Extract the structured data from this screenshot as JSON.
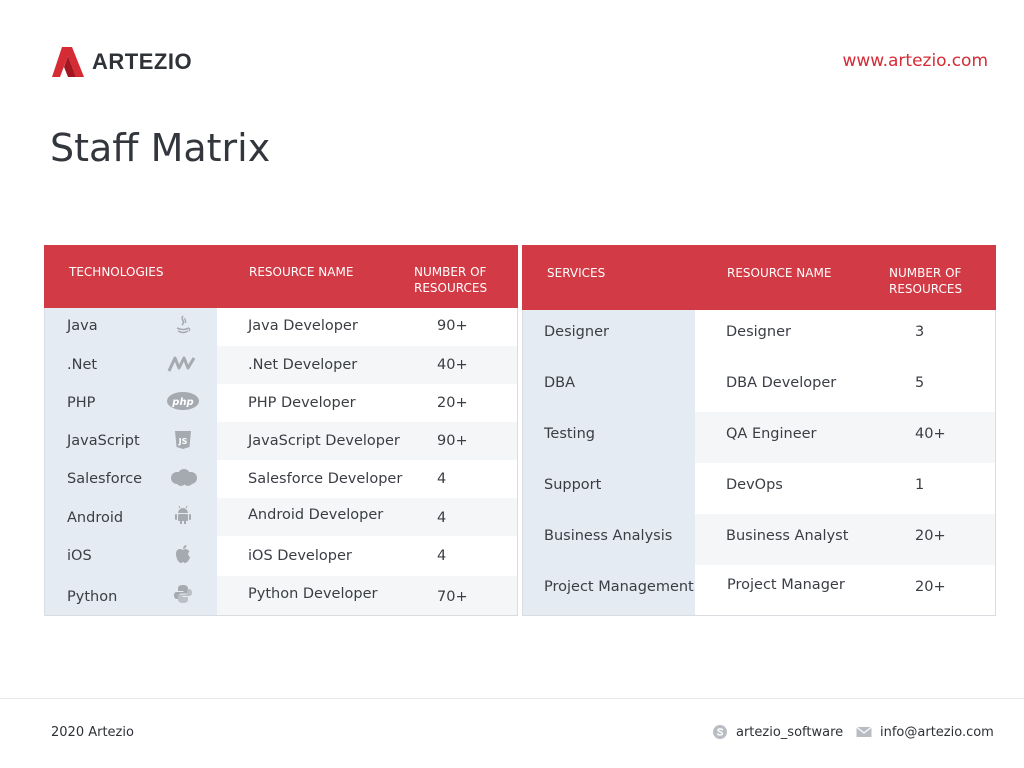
{
  "brand": {
    "name": "ARTEZIO",
    "url": "www.artezio.com",
    "accent": "#d23a45"
  },
  "page": {
    "title": "Staff Matrix"
  },
  "tech_table": {
    "headers": [
      "TECHNOLOGIES",
      "RESOURCE NAME",
      "NUMBER OF RESOURCES"
    ],
    "rows": [
      {
        "tech": "Java",
        "icon": "java-icon",
        "resource": "Java Developer",
        "count": "90+"
      },
      {
        "tech": ".Net",
        "icon": "dotnet-icon",
        "resource": ".Net Developer",
        "count": "40+"
      },
      {
        "tech": "PHP",
        "icon": "php-icon",
        "resource": "PHP Developer",
        "count": "20+"
      },
      {
        "tech": "JavaScript",
        "icon": "javascript-icon",
        "resource": "JavaScript Developer",
        "count": "90+"
      },
      {
        "tech": "Salesforce",
        "icon": "salesforce-icon",
        "resource": "Salesforce Developer",
        "count": "4"
      },
      {
        "tech": "Android",
        "icon": "android-icon",
        "resource": "Android Developer",
        "count": "4"
      },
      {
        "tech": "iOS",
        "icon": "apple-icon",
        "resource": "iOS Developer",
        "count": "4"
      },
      {
        "tech": "Python",
        "icon": "python-icon",
        "resource": "Python Developer",
        "count": "70+"
      }
    ]
  },
  "services_table": {
    "headers": [
      "SERVICES",
      "RESOURCE NAME",
      "NUMBER OF RESOURCES"
    ],
    "rows": [
      {
        "service": "Designer",
        "resource": "Designer",
        "count": "3"
      },
      {
        "service": "DBA",
        "resource": "DBA Developer",
        "count": "5"
      },
      {
        "service": "Testing",
        "resource": "QA Engineer",
        "count": "40+"
      },
      {
        "service": "Support",
        "resource": "DevOps",
        "count": "1"
      },
      {
        "service": "Business Analysis",
        "resource": "Business Analyst",
        "count": "20+"
      },
      {
        "service": "Project Management",
        "resource": "Project Manager",
        "count": "20+"
      }
    ]
  },
  "footer": {
    "copyright": "2020 Artezio",
    "skype": "artezio_software",
    "skype_icon": "skype-icon",
    "email": "info@artezio.com",
    "email_icon": "mail-icon"
  }
}
